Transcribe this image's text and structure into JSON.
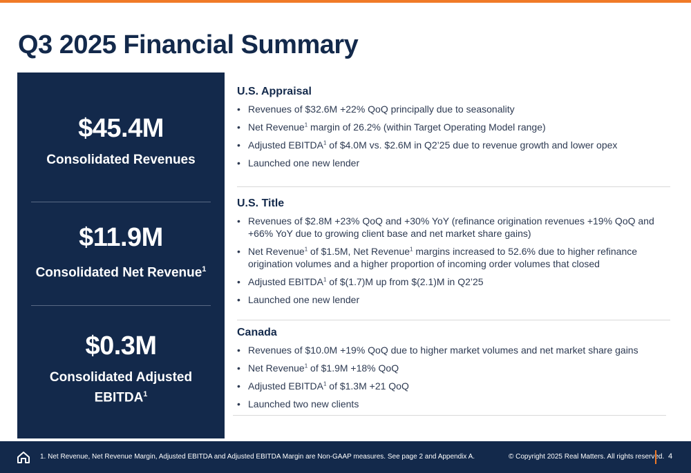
{
  "title": "Q3 2025 Financial Summary",
  "kpis": [
    {
      "value": "$45.4M",
      "label": "Consolidated Revenues",
      "sup": ""
    },
    {
      "value": "$11.9M",
      "label": "Consolidated Net Revenue",
      "sup": "1"
    },
    {
      "value": "$0.3M",
      "label_line1": "Consolidated Adjusted",
      "label_line2": "EBITDA",
      "sup": "1"
    }
  ],
  "sections": [
    {
      "heading": "U.S. Appraisal",
      "bullets": [
        {
          "text": "Revenues of $32.6M +22% QoQ principally due to seasonality"
        },
        {
          "pre": "Net Revenue",
          "sup": "1",
          "post": " margin of 26.2% (within Target Operating Model range)"
        },
        {
          "pre": "Adjusted EBITDA",
          "sup": "1",
          "post": " of $4.0M vs. $2.6M in Q2’25 due to revenue growth and lower opex"
        },
        {
          "text": "Launched one new lender"
        }
      ]
    },
    {
      "heading": "U.S. Title",
      "bullets": [
        {
          "text": "Revenues of $2.8M +23% QoQ and +30% YoY (refinance origination revenues +19% QoQ and +66% YoY due to growing client base and net market share gains)"
        },
        {
          "pre": "Net Revenue",
          "sup": "1",
          "mid": " of $1.5M, Net Revenue",
          "sup2": "1",
          "post": " margins increased to 52.6% due to higher refinance origination volumes and a higher proportion of incoming order volumes that closed"
        },
        {
          "pre": "Adjusted EBITDA",
          "sup": "1",
          "post": " of $(1.7)M up from $(2.1)M in Q2’25"
        },
        {
          "text": "Launched one new lender"
        }
      ]
    },
    {
      "heading": "Canada",
      "bullets": [
        {
          "text": "Revenues of $10.0M +19% QoQ due to higher market volumes and net market share gains"
        },
        {
          "pre": "Net Revenue",
          "sup": "1",
          "post": " of $1.9M  +18% QoQ"
        },
        {
          "pre": "Adjusted EBITDA",
          "sup": "1",
          "post": " of $1.3M +21 QoQ"
        },
        {
          "text": "Launched two new clients"
        }
      ]
    }
  ],
  "footer": {
    "icon": "home-icon",
    "note": "1. Net Revenue, Net Revenue Margin, Adjusted EBITDA and Adjusted EBITDA Margin are Non-GAAP measures. See page 2 and Appendix A.",
    "copyright": "© Copyright 2025 Real Matters. All rights reserved.",
    "page": "4"
  },
  "colors": {
    "navy": "#13294b",
    "accent": "#f07a28"
  }
}
